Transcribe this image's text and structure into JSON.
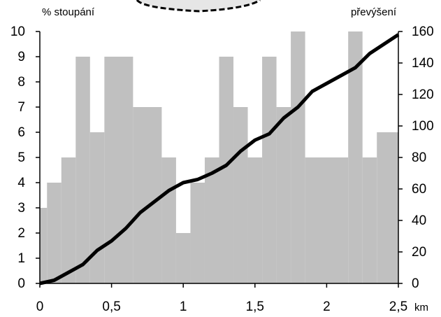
{
  "chart_data": {
    "type": "histogram",
    "ylabel": "% stoupání",
    "y2label": "převýšení",
    "x_unit": "km",
    "bins": [
      0,
      0.05,
      0.15,
      0.25,
      0.35,
      0.45,
      0.65,
      0.85,
      0.95,
      1.05,
      1.15,
      1.25,
      1.35,
      1.45,
      1.55,
      1.65,
      1.75,
      1.85,
      2.15,
      2.25,
      2.35,
      2.5
    ],
    "values": [
      3,
      4,
      5,
      9,
      6,
      9,
      7,
      5,
      2,
      4,
      5,
      9,
      7,
      5,
      9,
      7,
      10,
      5,
      10,
      5,
      6
    ],
    "color": "#c0c0c0",
    "line": {
      "type": "line",
      "axis": "y2",
      "color": "#000000",
      "x": [
        0,
        0.1,
        0.2,
        0.3,
        0.4,
        0.5,
        0.6,
        0.7,
        0.8,
        0.9,
        1.0,
        1.1,
        1.2,
        1.3,
        1.4,
        1.5,
        1.6,
        1.7,
        1.8,
        1.9,
        2.0,
        2.1,
        2.2,
        2.3,
        2.4,
        2.5
      ],
      "values": [
        0,
        2,
        7,
        12,
        21,
        27,
        35,
        45,
        52,
        59,
        64,
        66,
        70,
        75,
        84,
        91,
        95,
        105,
        112,
        122,
        127,
        132,
        137,
        146,
        152,
        158
      ]
    },
    "xlim": [
      0,
      2.5
    ],
    "xticks": [
      0,
      {
        "value": 0.5,
        "label": "0,5"
      },
      1,
      {
        "value": 1.5,
        "label": "1,5"
      },
      2,
      {
        "value": 2.5,
        "label": "2,5"
      }
    ],
    "ylim": [
      0,
      10
    ],
    "yticks": [
      0,
      1,
      2,
      3,
      4,
      5,
      6,
      7,
      8,
      9,
      10
    ],
    "y2lim": [
      0,
      160
    ],
    "y2ticks": [
      0,
      20,
      40,
      60,
      80,
      100,
      120,
      140,
      160
    ]
  }
}
